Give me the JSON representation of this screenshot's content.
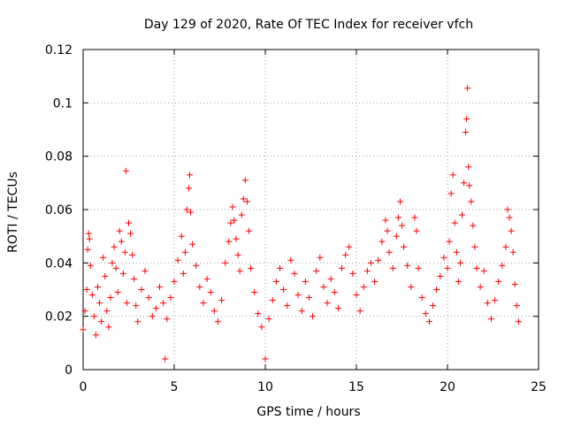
{
  "chart_data": {
    "type": "scatter",
    "title": "Day 129 of 2020, Rate Of TEC Index for receiver vfch",
    "xlabel": "GPS time / hours",
    "ylabel": "ROTI / TECUs",
    "xlim": [
      0,
      25
    ],
    "ylim": [
      0,
      0.12
    ],
    "x_ticks": [
      0,
      5,
      10,
      15,
      20,
      25
    ],
    "y_ticks": [
      0,
      0.02,
      0.04,
      0.06,
      0.08,
      0.1,
      0.12
    ],
    "x_tick_labels": [
      "0",
      "5",
      "10",
      "15",
      "20",
      "25"
    ],
    "y_tick_labels": [
      "0",
      "0.02",
      "0.04",
      "0.06",
      "0.08",
      "0.1",
      "0.12"
    ],
    "grid": true,
    "marker": "plus",
    "series_color": "#ff0000",
    "points": [
      [
        0.0,
        0.015
      ],
      [
        0.1,
        0.022
      ],
      [
        0.2,
        0.03
      ],
      [
        0.25,
        0.045
      ],
      [
        0.3,
        0.051
      ],
      [
        0.35,
        0.049
      ],
      [
        0.4,
        0.039
      ],
      [
        0.5,
        0.028
      ],
      [
        0.6,
        0.02
      ],
      [
        0.7,
        0.013
      ],
      [
        0.8,
        0.031
      ],
      [
        0.9,
        0.025
      ],
      [
        1.0,
        0.018
      ],
      [
        1.1,
        0.042
      ],
      [
        1.2,
        0.035
      ],
      [
        1.3,
        0.022
      ],
      [
        1.4,
        0.016
      ],
      [
        1.5,
        0.027
      ],
      [
        1.6,
        0.04
      ],
      [
        1.7,
        0.046
      ],
      [
        1.8,
        0.038
      ],
      [
        1.9,
        0.029
      ],
      [
        2.0,
        0.052
      ],
      [
        2.1,
        0.048
      ],
      [
        2.2,
        0.036
      ],
      [
        2.3,
        0.044
      ],
      [
        2.35,
        0.0745
      ],
      [
        2.4,
        0.025
      ],
      [
        2.5,
        0.055
      ],
      [
        2.6,
        0.051
      ],
      [
        2.7,
        0.043
      ],
      [
        2.8,
        0.034
      ],
      [
        2.9,
        0.024
      ],
      [
        3.0,
        0.018
      ],
      [
        3.2,
        0.03
      ],
      [
        3.4,
        0.037
      ],
      [
        3.6,
        0.027
      ],
      [
        3.8,
        0.02
      ],
      [
        4.0,
        0.023
      ],
      [
        4.2,
        0.031
      ],
      [
        4.4,
        0.025
      ],
      [
        4.5,
        0.004
      ],
      [
        4.6,
        0.019
      ],
      [
        4.8,
        0.027
      ],
      [
        5.0,
        0.033
      ],
      [
        5.2,
        0.041
      ],
      [
        5.4,
        0.05
      ],
      [
        5.5,
        0.036
      ],
      [
        5.6,
        0.044
      ],
      [
        5.7,
        0.06
      ],
      [
        5.8,
        0.068
      ],
      [
        5.85,
        0.073
      ],
      [
        5.9,
        0.059
      ],
      [
        6.0,
        0.047
      ],
      [
        6.2,
        0.039
      ],
      [
        6.4,
        0.031
      ],
      [
        6.6,
        0.025
      ],
      [
        6.8,
        0.034
      ],
      [
        7.0,
        0.029
      ],
      [
        7.2,
        0.022
      ],
      [
        7.4,
        0.018
      ],
      [
        7.6,
        0.026
      ],
      [
        7.8,
        0.04
      ],
      [
        8.0,
        0.048
      ],
      [
        8.1,
        0.055
      ],
      [
        8.2,
        0.061
      ],
      [
        8.3,
        0.056
      ],
      [
        8.4,
        0.049
      ],
      [
        8.5,
        0.043
      ],
      [
        8.6,
        0.037
      ],
      [
        8.7,
        0.058
      ],
      [
        8.8,
        0.064
      ],
      [
        8.9,
        0.071
      ],
      [
        9.0,
        0.063
      ],
      [
        9.1,
        0.052
      ],
      [
        9.2,
        0.038
      ],
      [
        9.4,
        0.029
      ],
      [
        9.6,
        0.021
      ],
      [
        9.8,
        0.016
      ],
      [
        10.0,
        0.004
      ],
      [
        10.2,
        0.019
      ],
      [
        10.4,
        0.026
      ],
      [
        10.6,
        0.033
      ],
      [
        10.8,
        0.038
      ],
      [
        11.0,
        0.03
      ],
      [
        11.2,
        0.024
      ],
      [
        11.4,
        0.041
      ],
      [
        11.6,
        0.036
      ],
      [
        11.8,
        0.028
      ],
      [
        12.0,
        0.022
      ],
      [
        12.2,
        0.033
      ],
      [
        12.4,
        0.027
      ],
      [
        12.6,
        0.02
      ],
      [
        12.8,
        0.037
      ],
      [
        13.0,
        0.042
      ],
      [
        13.2,
        0.031
      ],
      [
        13.4,
        0.025
      ],
      [
        13.6,
        0.034
      ],
      [
        13.8,
        0.029
      ],
      [
        14.0,
        0.023
      ],
      [
        14.2,
        0.038
      ],
      [
        14.4,
        0.043
      ],
      [
        14.6,
        0.046
      ],
      [
        14.8,
        0.036
      ],
      [
        15.0,
        0.028
      ],
      [
        15.2,
        0.022
      ],
      [
        15.4,
        0.031
      ],
      [
        15.6,
        0.037
      ],
      [
        15.8,
        0.04
      ],
      [
        16.0,
        0.033
      ],
      [
        16.2,
        0.041
      ],
      [
        16.4,
        0.048
      ],
      [
        16.6,
        0.056
      ],
      [
        16.7,
        0.052
      ],
      [
        16.8,
        0.044
      ],
      [
        17.0,
        0.038
      ],
      [
        17.2,
        0.05
      ],
      [
        17.3,
        0.057
      ],
      [
        17.4,
        0.063
      ],
      [
        17.5,
        0.054
      ],
      [
        17.6,
        0.046
      ],
      [
        17.8,
        0.039
      ],
      [
        18.0,
        0.031
      ],
      [
        18.2,
        0.057
      ],
      [
        18.3,
        0.052
      ],
      [
        18.4,
        0.038
      ],
      [
        18.6,
        0.027
      ],
      [
        18.8,
        0.021
      ],
      [
        19.0,
        0.018
      ],
      [
        19.2,
        0.024
      ],
      [
        19.4,
        0.03
      ],
      [
        19.6,
        0.035
      ],
      [
        19.8,
        0.042
      ],
      [
        20.0,
        0.038
      ],
      [
        20.1,
        0.048
      ],
      [
        20.2,
        0.066
      ],
      [
        20.3,
        0.073
      ],
      [
        20.4,
        0.055
      ],
      [
        20.5,
        0.044
      ],
      [
        20.6,
        0.033
      ],
      [
        20.7,
        0.04
      ],
      [
        20.8,
        0.058
      ],
      [
        20.9,
        0.07
      ],
      [
        21.0,
        0.089
      ],
      [
        21.05,
        0.094
      ],
      [
        21.1,
        0.1055
      ],
      [
        21.15,
        0.076
      ],
      [
        21.2,
        0.069
      ],
      [
        21.3,
        0.063
      ],
      [
        21.4,
        0.054
      ],
      [
        21.5,
        0.046
      ],
      [
        21.6,
        0.038
      ],
      [
        21.8,
        0.031
      ],
      [
        22.0,
        0.037
      ],
      [
        22.2,
        0.025
      ],
      [
        22.4,
        0.019
      ],
      [
        22.6,
        0.026
      ],
      [
        22.8,
        0.033
      ],
      [
        23.0,
        0.039
      ],
      [
        23.2,
        0.046
      ],
      [
        23.3,
        0.06
      ],
      [
        23.4,
        0.057
      ],
      [
        23.5,
        0.052
      ],
      [
        23.6,
        0.044
      ],
      [
        23.7,
        0.032
      ],
      [
        23.8,
        0.024
      ],
      [
        23.9,
        0.018
      ]
    ]
  }
}
